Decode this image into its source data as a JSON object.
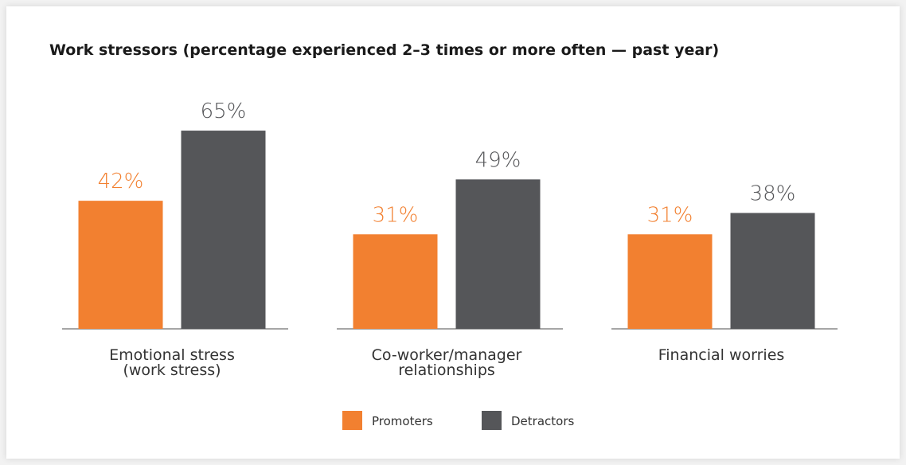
{
  "chart_data": {
    "type": "bar",
    "title": "Work stressors (percentage experienced 2–3 times or more often — past year)",
    "categories": [
      "Emotional stress\n(work stress)",
      "Co-worker/manager\nrelationships",
      "Financial worries"
    ],
    "series": [
      {
        "name": "Promoters",
        "color": "#f28030",
        "values": [
          42,
          31,
          31
        ],
        "value_labels": [
          "42%",
          "31%",
          "31%"
        ]
      },
      {
        "name": "Detractors",
        "color": "#555659",
        "values": [
          65,
          49,
          38
        ],
        "value_labels": [
          "65%",
          "49%",
          "38%"
        ]
      }
    ]
  }
}
